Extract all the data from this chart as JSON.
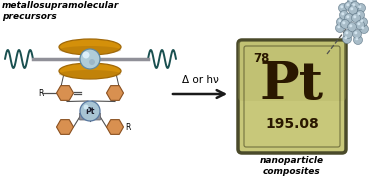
{
  "bg_color": "#ffffff",
  "title_left": "metallosupramolecular\nprecursors",
  "title_right": "nanoparticle\ncomposites",
  "arrow_label": "Δ or hν",
  "pt_symbol": "Pt",
  "pt_number": "78",
  "pt_mass": "195.08",
  "pt_box_color": "#c8c87a",
  "pt_box_border": "#4a4a2a",
  "pt_text_color": "#2a1800",
  "polymer_color": "#1a5050",
  "gold_shape_color": "#d4900a",
  "gold_edge_color": "#a06808",
  "sphere_color_light": "#b0ccd8",
  "sphere_color_dark": "#6088a0",
  "benzene_color": "#d89050",
  "benzene_edge": "#8a5020",
  "pt_atom_color_light": "#a8c4d4",
  "pt_atom_color_dark": "#5878a0",
  "arrow_color": "#1a1a1a",
  "nanoparticle_color": "#a8bcc8",
  "nanoparticle_edge": "#607888",
  "connector_color": "#505050",
  "gray_connector": "#909098"
}
